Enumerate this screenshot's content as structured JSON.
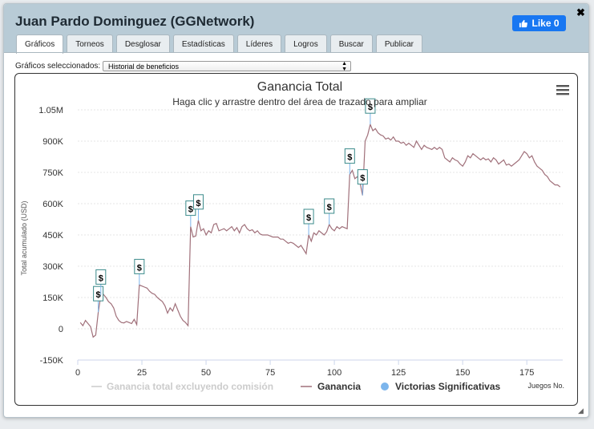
{
  "window": {
    "title": "Juan Pardo Dominguez (GGNetwork)",
    "like_label": "Like 0",
    "close_glyph": "✖"
  },
  "tabs": [
    {
      "label": "Gráficos",
      "active": true
    },
    {
      "label": "Torneos"
    },
    {
      "label": "Desglosar"
    },
    {
      "label": "Estadísticas"
    },
    {
      "label": "Líderes"
    },
    {
      "label": "Logros"
    },
    {
      "label": "Buscar"
    },
    {
      "label": "Publicar"
    }
  ],
  "selector": {
    "label": "Gráficos seleccionados:",
    "value": "Historial de beneficios"
  },
  "chart_data": {
    "type": "line",
    "title": "Ganancia Total",
    "subtitle": "Haga clic y arrastre dentro del área de trazado para ampliar",
    "xlabel": "Juegos No.",
    "ylabel": "Total acumulado (USD)",
    "xlim": [
      0,
      189
    ],
    "ylim": [
      -150000,
      1050000
    ],
    "x_ticks": [
      "0",
      "25",
      "50",
      "75",
      "100",
      "125",
      "150",
      "175"
    ],
    "y_ticks": [
      "-150K",
      "0",
      "150K",
      "300K",
      "450K",
      "600K",
      "750K",
      "900K",
      "1.05M"
    ],
    "legend": [
      "Ganancia total excluyendo comisión",
      "Ganancia",
      "Victorias Significativas"
    ],
    "series": [
      {
        "name": "Ganancia",
        "color": "#a0707a",
        "points": [
          [
            1,
            30000
          ],
          [
            2,
            15000
          ],
          [
            3,
            40000
          ],
          [
            4,
            25000
          ],
          [
            5,
            10000
          ],
          [
            6,
            -40000
          ],
          [
            7,
            -30000
          ],
          [
            8,
            80000
          ],
          [
            9,
            160000
          ],
          [
            10,
            165000
          ],
          [
            11,
            150000
          ],
          [
            12,
            130000
          ],
          [
            13,
            120000
          ],
          [
            14,
            100000
          ],
          [
            15,
            60000
          ],
          [
            16,
            40000
          ],
          [
            17,
            30000
          ],
          [
            18,
            28000
          ],
          [
            19,
            35000
          ],
          [
            20,
            30000
          ],
          [
            21,
            25000
          ],
          [
            22,
            45000
          ],
          [
            23,
            20000
          ],
          [
            24,
            210000
          ],
          [
            25,
            205000
          ],
          [
            26,
            200000
          ],
          [
            27,
            195000
          ],
          [
            28,
            180000
          ],
          [
            29,
            170000
          ],
          [
            30,
            165000
          ],
          [
            31,
            150000
          ],
          [
            32,
            140000
          ],
          [
            33,
            130000
          ],
          [
            34,
            110000
          ],
          [
            35,
            75000
          ],
          [
            36,
            100000
          ],
          [
            37,
            85000
          ],
          [
            38,
            120000
          ],
          [
            39,
            90000
          ],
          [
            40,
            60000
          ],
          [
            41,
            40000
          ],
          [
            42,
            30000
          ],
          [
            43,
            15000
          ],
          [
            44,
            490000
          ],
          [
            45,
            440000
          ],
          [
            46,
            445000
          ],
          [
            47,
            520000
          ],
          [
            48,
            470000
          ],
          [
            49,
            480000
          ],
          [
            50,
            450000
          ],
          [
            51,
            470000
          ],
          [
            52,
            460000
          ],
          [
            53,
            500000
          ],
          [
            54,
            505000
          ],
          [
            55,
            470000
          ],
          [
            56,
            475000
          ],
          [
            57,
            480000
          ],
          [
            58,
            470000
          ],
          [
            59,
            480000
          ],
          [
            60,
            490000
          ],
          [
            61,
            470000
          ],
          [
            62,
            485000
          ],
          [
            63,
            460000
          ],
          [
            64,
            490000
          ],
          [
            65,
            500000
          ],
          [
            66,
            480000
          ],
          [
            67,
            470000
          ],
          [
            68,
            475000
          ],
          [
            69,
            460000
          ],
          [
            70,
            470000
          ],
          [
            71,
            455000
          ],
          [
            72,
            450000
          ],
          [
            73,
            450000
          ],
          [
            74,
            450000
          ],
          [
            75,
            445000
          ],
          [
            76,
            440000
          ],
          [
            77,
            440000
          ],
          [
            78,
            440000
          ],
          [
            79,
            430000
          ],
          [
            80,
            430000
          ],
          [
            81,
            420000
          ],
          [
            82,
            410000
          ],
          [
            83,
            415000
          ],
          [
            84,
            410000
          ],
          [
            85,
            400000
          ],
          [
            86,
            390000
          ],
          [
            87,
            400000
          ],
          [
            88,
            380000
          ],
          [
            89,
            360000
          ],
          [
            90,
            450000
          ],
          [
            91,
            420000
          ],
          [
            92,
            460000
          ],
          [
            93,
            450000
          ],
          [
            94,
            470000
          ],
          [
            95,
            460000
          ],
          [
            96,
            450000
          ],
          [
            97,
            465000
          ],
          [
            98,
            500000
          ],
          [
            99,
            480000
          ],
          [
            100,
            470000
          ],
          [
            101,
            490000
          ],
          [
            102,
            480000
          ],
          [
            103,
            490000
          ],
          [
            104,
            485000
          ],
          [
            105,
            480000
          ],
          [
            106,
            740000
          ],
          [
            107,
            760000
          ],
          [
            108,
            720000
          ],
          [
            109,
            730000
          ],
          [
            110,
            700000
          ],
          [
            111,
            640000
          ],
          [
            112,
            900000
          ],
          [
            113,
            930000
          ],
          [
            114,
            980000
          ],
          [
            115,
            950000
          ],
          [
            116,
            960000
          ],
          [
            117,
            940000
          ],
          [
            118,
            930000
          ],
          [
            119,
            925000
          ],
          [
            120,
            910000
          ],
          [
            121,
            915000
          ],
          [
            122,
            905000
          ],
          [
            123,
            920000
          ],
          [
            124,
            900000
          ],
          [
            125,
            900000
          ],
          [
            126,
            890000
          ],
          [
            127,
            895000
          ],
          [
            128,
            880000
          ],
          [
            129,
            890000
          ],
          [
            130,
            880000
          ],
          [
            131,
            870000
          ],
          [
            132,
            900000
          ],
          [
            133,
            880000
          ],
          [
            134,
            860000
          ],
          [
            135,
            880000
          ],
          [
            136,
            870000
          ],
          [
            137,
            865000
          ],
          [
            138,
            860000
          ],
          [
            139,
            870000
          ],
          [
            140,
            860000
          ],
          [
            141,
            870000
          ],
          [
            142,
            860000
          ],
          [
            143,
            820000
          ],
          [
            144,
            810000
          ],
          [
            145,
            800000
          ],
          [
            146,
            820000
          ],
          [
            147,
            810000
          ],
          [
            148,
            805000
          ],
          [
            149,
            790000
          ],
          [
            150,
            780000
          ],
          [
            151,
            800000
          ],
          [
            152,
            830000
          ],
          [
            153,
            820000
          ],
          [
            154,
            840000
          ],
          [
            155,
            830000
          ],
          [
            156,
            820000
          ],
          [
            157,
            810000
          ],
          [
            158,
            820000
          ],
          [
            159,
            810000
          ],
          [
            160,
            815000
          ],
          [
            161,
            800000
          ],
          [
            162,
            820000
          ],
          [
            163,
            810000
          ],
          [
            164,
            790000
          ],
          [
            165,
            800000
          ],
          [
            166,
            810000
          ],
          [
            167,
            785000
          ],
          [
            168,
            790000
          ],
          [
            169,
            780000
          ],
          [
            170,
            790000
          ],
          [
            171,
            800000
          ],
          [
            172,
            810000
          ],
          [
            173,
            830000
          ],
          [
            174,
            850000
          ],
          [
            175,
            840000
          ],
          [
            176,
            820000
          ],
          [
            177,
            830000
          ],
          [
            178,
            800000
          ],
          [
            179,
            780000
          ],
          [
            180,
            770000
          ],
          [
            181,
            760000
          ],
          [
            182,
            740000
          ],
          [
            183,
            730000
          ],
          [
            184,
            710000
          ],
          [
            185,
            700000
          ],
          [
            186,
            690000
          ],
          [
            187,
            690000
          ],
          [
            188,
            680000
          ]
        ]
      }
    ],
    "significant_wins": [
      {
        "x": 8,
        "y": 80000,
        "label": "$"
      },
      {
        "x": 9,
        "y": 160000,
        "label": "$"
      },
      {
        "x": 24,
        "y": 210000,
        "label": "$"
      },
      {
        "x": 44,
        "y": 490000,
        "label": "$"
      },
      {
        "x": 47,
        "y": 520000,
        "label": "$"
      },
      {
        "x": 90,
        "y": 450000,
        "label": "$"
      },
      {
        "x": 98,
        "y": 500000,
        "label": "$"
      },
      {
        "x": 106,
        "y": 740000,
        "label": "$"
      },
      {
        "x": 111,
        "y": 640000,
        "label": "$"
      },
      {
        "x": 114,
        "y": 980000,
        "label": "$"
      }
    ]
  }
}
